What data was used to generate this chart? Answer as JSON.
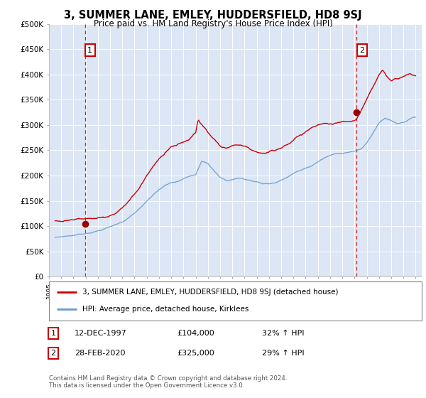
{
  "title": "3, SUMMER LANE, EMLEY, HUDDERSFIELD, HD8 9SJ",
  "subtitle": "Price paid vs. HM Land Registry's House Price Index (HPI)",
  "ylim": [
    0,
    500000
  ],
  "yticks": [
    0,
    50000,
    100000,
    150000,
    200000,
    250000,
    300000,
    350000,
    400000,
    450000,
    500000
  ],
  "xlim_start": 1995.5,
  "xlim_end": 2025.5,
  "bg_color": "#dce6f5",
  "sale1_date": 1997.958,
  "sale1_price": 104000,
  "sale1_label": "1",
  "sale2_date": 2020.16,
  "sale2_price": 325000,
  "sale2_label": "2",
  "line_color_property": "#cc0000",
  "line_color_hpi": "#6699cc",
  "marker_color": "#990000",
  "vline_color": "#cc0000",
  "legend_label_property": "3, SUMMER LANE, EMLEY, HUDDERSFIELD, HD8 9SJ (detached house)",
  "legend_label_hpi": "HPI: Average price, detached house, Kirklees",
  "annotation1": [
    "1",
    "12-DEC-1997",
    "£104,000",
    "32% ↑ HPI"
  ],
  "annotation2": [
    "2",
    "28-FEB-2020",
    "£325,000",
    "29% ↑ HPI"
  ],
  "footer": "Contains HM Land Registry data © Crown copyright and database right 2024.\nThis data is licensed under the Open Government Licence v3.0."
}
